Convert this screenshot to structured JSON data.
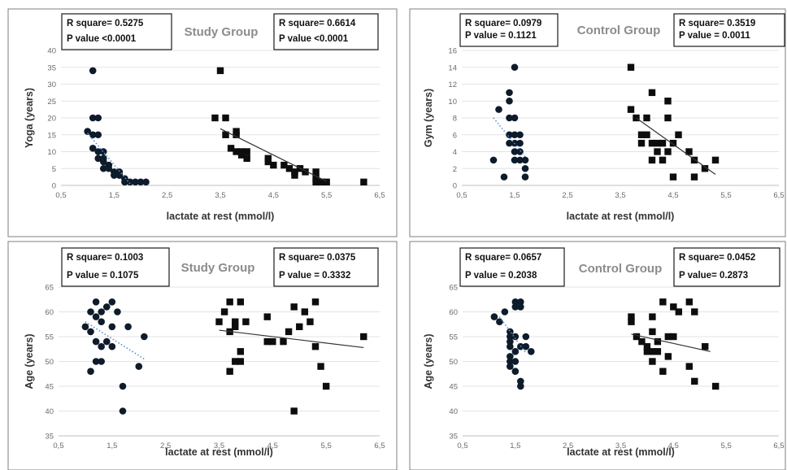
{
  "chart_data": [
    {
      "type": "scatter",
      "title": "Study Group",
      "xlabel": "lactate at rest (mmol/l)",
      "ylabel": "Yoga (years)",
      "xlim": [
        0.5,
        6.5
      ],
      "ylim": [
        0,
        40
      ],
      "x_ticks": [
        "0,5",
        "1,5",
        "2,5",
        "3,5",
        "4,5",
        "5,5",
        "6,5"
      ],
      "y_ticks": [
        "0",
        "5",
        "10",
        "15",
        "20",
        "25",
        "30",
        "35",
        "40"
      ],
      "grid": true,
      "stats": [
        {
          "r_square": "R square= 0.5275",
          "p_value": "P value   <0.0001"
        },
        {
          "r_square": "R square= 0.6614",
          "p_value": "P value     <0.0001"
        }
      ],
      "series": [
        {
          "marker": "circle",
          "color": "#0d1b2a",
          "trend": {
            "style": "dotted",
            "color": "#5b8fd0",
            "x": [
              1.0,
              1.8
            ],
            "y": [
              15.5,
              0.5
            ]
          },
          "points": [
            [
              1.0,
              16
            ],
            [
              1.1,
              34
            ],
            [
              1.1,
              20
            ],
            [
              1.2,
              20
            ],
            [
              1.1,
              15
            ],
            [
              1.2,
              15
            ],
            [
              1.1,
              11
            ],
            [
              1.2,
              10
            ],
            [
              1.3,
              10
            ],
            [
              1.2,
              8
            ],
            [
              1.3,
              8
            ],
            [
              1.3,
              7
            ],
            [
              1.4,
              6
            ],
            [
              1.4,
              5
            ],
            [
              1.3,
              5
            ],
            [
              1.5,
              4
            ],
            [
              1.5,
              3
            ],
            [
              1.6,
              4
            ],
            [
              1.6,
              3
            ],
            [
              1.7,
              2
            ],
            [
              1.7,
              1
            ],
            [
              1.8,
              1
            ],
            [
              1.9,
              1
            ],
            [
              2.0,
              1
            ],
            [
              2.1,
              1
            ]
          ]
        },
        {
          "marker": "square",
          "color": "#0d0d0d",
          "trend": {
            "style": "solid",
            "color": "#333333",
            "x": [
              3.5,
              5.5
            ],
            "y": [
              16.8,
              1.2
            ]
          },
          "points": [
            [
              3.5,
              34
            ],
            [
              3.4,
              20
            ],
            [
              3.6,
              20
            ],
            [
              3.6,
              15
            ],
            [
              3.8,
              16
            ],
            [
              3.8,
              15
            ],
            [
              3.7,
              11
            ],
            [
              3.8,
              10
            ],
            [
              3.9,
              10
            ],
            [
              4.0,
              10
            ],
            [
              3.9,
              9
            ],
            [
              4.0,
              8
            ],
            [
              4.4,
              8
            ],
            [
              4.4,
              7
            ],
            [
              4.5,
              6
            ],
            [
              4.7,
              6
            ],
            [
              4.8,
              5
            ],
            [
              4.9,
              4
            ],
            [
              5.0,
              5
            ],
            [
              4.9,
              3
            ],
            [
              5.1,
              4
            ],
            [
              5.3,
              4
            ],
            [
              5.3,
              2
            ],
            [
              5.3,
              1
            ],
            [
              5.4,
              1
            ],
            [
              5.5,
              1
            ],
            [
              6.2,
              1
            ]
          ]
        }
      ]
    },
    {
      "type": "scatter",
      "title": "Control Group",
      "xlabel": "lactate at rest (mmol/l)",
      "ylabel": "Gym (years)",
      "xlim": [
        0.5,
        6.5
      ],
      "ylim": [
        0,
        16
      ],
      "x_ticks": [
        "0,5",
        "1,5",
        "2,5",
        "3,5",
        "4,5",
        "5,5",
        "6,5"
      ],
      "y_ticks": [
        "0",
        "2",
        "4",
        "6",
        "8",
        "10",
        "12",
        "14",
        "16"
      ],
      "grid": true,
      "stats": [
        {
          "r_square": "R square= 0.0979",
          "p_value": "P value   = 0.1121"
        },
        {
          "r_square": "R square= 0.3519",
          "p_value": "P value    = 0.0011"
        }
      ],
      "series": [
        {
          "marker": "circle",
          "color": "#0d1b2a",
          "trend": {
            "style": "dotted",
            "color": "#5b8fd0",
            "x": [
              1.1,
              1.7
            ],
            "y": [
              8.0,
              3.4
            ]
          },
          "points": [
            [
              1.1,
              3
            ],
            [
              1.2,
              9
            ],
            [
              1.3,
              1
            ],
            [
              1.4,
              11
            ],
            [
              1.4,
              10
            ],
            [
              1.4,
              8
            ],
            [
              1.5,
              8
            ],
            [
              1.4,
              6
            ],
            [
              1.5,
              6
            ],
            [
              1.6,
              6
            ],
            [
              1.4,
              5
            ],
            [
              1.5,
              5
            ],
            [
              1.6,
              5
            ],
            [
              1.5,
              4
            ],
            [
              1.6,
              4
            ],
            [
              1.5,
              3
            ],
            [
              1.6,
              3
            ],
            [
              1.7,
              3
            ],
            [
              1.7,
              2
            ],
            [
              1.7,
              1
            ],
            [
              1.5,
              14
            ]
          ]
        },
        {
          "marker": "square",
          "color": "#0d0d0d",
          "trend": {
            "style": "solid",
            "color": "#333333",
            "x": [
              3.8,
              5.3
            ],
            "y": [
              8.0,
              1.3
            ]
          },
          "points": [
            [
              3.7,
              14
            ],
            [
              3.7,
              9
            ],
            [
              3.8,
              8
            ],
            [
              3.9,
              6
            ],
            [
              3.9,
              5
            ],
            [
              4.0,
              6
            ],
            [
              4.0,
              8
            ],
            [
              4.1,
              11
            ],
            [
              4.1,
              5
            ],
            [
              4.2,
              5
            ],
            [
              4.2,
              4
            ],
            [
              4.1,
              3
            ],
            [
              4.3,
              5
            ],
            [
              4.3,
              3
            ],
            [
              4.4,
              10
            ],
            [
              4.4,
              8
            ],
            [
              4.4,
              4
            ],
            [
              4.5,
              5
            ],
            [
              4.6,
              6
            ],
            [
              4.5,
              1
            ],
            [
              4.8,
              4
            ],
            [
              4.9,
              3
            ],
            [
              4.9,
              1
            ],
            [
              5.1,
              2
            ],
            [
              5.3,
              3
            ]
          ]
        }
      ]
    },
    {
      "type": "scatter",
      "title": "Study Group",
      "xlabel": "lactate at rest (mmol/l)",
      "ylabel": "Age (years)",
      "xlim": [
        0.5,
        6.5
      ],
      "ylim": [
        35,
        65
      ],
      "x_ticks": [
        "0,5",
        "1,5",
        "2,5",
        "3,5",
        "4,5",
        "5,5",
        "6,5"
      ],
      "y_ticks": [
        "35",
        "40",
        "45",
        "50",
        "55",
        "60",
        "65"
      ],
      "grid": true,
      "stats": [
        {
          "r_square": "R square= 0.1003",
          "p_value": "P value   = 0.1075"
        },
        {
          "r_square": "R square= 0.0375",
          "p_value": "P value    = 0.3332"
        }
      ],
      "series": [
        {
          "marker": "circle",
          "color": "#0d1b2a",
          "trend": {
            "style": "dotted",
            "color": "#5b8fd0",
            "x": [
              1.0,
              2.1
            ],
            "y": [
              58.0,
              50.5
            ]
          },
          "points": [
            [
              1.0,
              57
            ],
            [
              1.1,
              56
            ],
            [
              1.1,
              60
            ],
            [
              1.2,
              62
            ],
            [
              1.2,
              59
            ],
            [
              1.1,
              48
            ],
            [
              1.3,
              60
            ],
            [
              1.3,
              58
            ],
            [
              1.2,
              54
            ],
            [
              1.3,
              53
            ],
            [
              1.4,
              54
            ],
            [
              1.4,
              61
            ],
            [
              1.5,
              62
            ],
            [
              1.5,
              57
            ],
            [
              1.6,
              60
            ],
            [
              1.2,
              50
            ],
            [
              1.3,
              50
            ],
            [
              1.5,
              53
            ],
            [
              1.7,
              45
            ],
            [
              1.7,
              40
            ],
            [
              1.8,
              57
            ],
            [
              2.0,
              49
            ],
            [
              2.1,
              55
            ]
          ]
        },
        {
          "marker": "square",
          "color": "#0d0d0d",
          "trend": {
            "style": "solid",
            "color": "#333333",
            "x": [
              3.5,
              6.2
            ],
            "y": [
              56.3,
              52.8
            ]
          },
          "points": [
            [
              3.5,
              58
            ],
            [
              3.6,
              60
            ],
            [
              3.7,
              62
            ],
            [
              3.7,
              56
            ],
            [
              3.9,
              62
            ],
            [
              3.8,
              58
            ],
            [
              3.8,
              57
            ],
            [
              4.0,
              58
            ],
            [
              3.9,
              52
            ],
            [
              3.7,
              48
            ],
            [
              3.8,
              50
            ],
            [
              3.9,
              50
            ],
            [
              4.4,
              59
            ],
            [
              4.4,
              54
            ],
            [
              4.5,
              54
            ],
            [
              4.7,
              54
            ],
            [
              4.8,
              56
            ],
            [
              4.9,
              61
            ],
            [
              4.9,
              40
            ],
            [
              5.0,
              57
            ],
            [
              5.1,
              60
            ],
            [
              5.2,
              58
            ],
            [
              5.3,
              62
            ],
            [
              5.3,
              53
            ],
            [
              5.4,
              49
            ],
            [
              5.5,
              45
            ],
            [
              6.2,
              55
            ]
          ]
        }
      ]
    },
    {
      "type": "scatter",
      "title": "Control Group",
      "xlabel": "lactate at rest (mmol/l)",
      "ylabel": "Age (years)",
      "xlim": [
        0.5,
        6.5
      ],
      "ylim": [
        35,
        65
      ],
      "x_ticks": [
        "0,5",
        "1,5",
        "2,5",
        "3,5",
        "4,5",
        "5,5",
        "6,5"
      ],
      "y_ticks": [
        "35",
        "40",
        "45",
        "50",
        "55",
        "60",
        "65"
      ],
      "grid": true,
      "stats": [
        {
          "r_square": "R square= 0.0657",
          "p_value": "P value   = 0.2038"
        },
        {
          "r_square": "R square= 0.0452",
          "p_value": "P value=     0.2873"
        }
      ],
      "series": [
        {
          "marker": "circle",
          "color": "#0d1b2a",
          "trend": {
            "style": "dotted",
            "color": "#5b8fd0",
            "x": [
              1.2,
              1.7
            ],
            "y": [
              59.0,
              51.7
            ]
          },
          "points": [
            [
              1.1,
              59
            ],
            [
              1.2,
              58
            ],
            [
              1.3,
              60
            ],
            [
              1.4,
              56
            ],
            [
              1.4,
              55
            ],
            [
              1.4,
              54
            ],
            [
              1.4,
              53
            ],
            [
              1.4,
              51
            ],
            [
              1.4,
              50
            ],
            [
              1.4,
              49
            ],
            [
              1.5,
              62
            ],
            [
              1.5,
              61
            ],
            [
              1.5,
              55
            ],
            [
              1.5,
              52
            ],
            [
              1.5,
              50
            ],
            [
              1.5,
              48
            ],
            [
              1.6,
              62
            ],
            [
              1.6,
              61
            ],
            [
              1.6,
              46
            ],
            [
              1.6,
              45
            ],
            [
              1.7,
              55
            ],
            [
              1.7,
              53
            ],
            [
              1.8,
              52
            ],
            [
              1.6,
              53
            ]
          ]
        },
        {
          "marker": "square",
          "color": "#0d0d0d",
          "trend": {
            "style": "solid",
            "color": "#333333",
            "x": [
              3.7,
              5.2
            ],
            "y": [
              55.5,
              52.0
            ]
          },
          "points": [
            [
              3.7,
              59
            ],
            [
              3.7,
              58
            ],
            [
              3.8,
              55
            ],
            [
              3.9,
              54
            ],
            [
              4.0,
              53
            ],
            [
              4.0,
              52
            ],
            [
              4.1,
              59
            ],
            [
              4.1,
              56
            ],
            [
              4.1,
              52
            ],
            [
              4.1,
              50
            ],
            [
              4.2,
              54
            ],
            [
              4.2,
              52
            ],
            [
              4.3,
              48
            ],
            [
              4.3,
              62
            ],
            [
              4.4,
              51
            ],
            [
              4.4,
              55
            ],
            [
              4.5,
              55
            ],
            [
              4.5,
              61
            ],
            [
              4.6,
              60
            ],
            [
              4.8,
              62
            ],
            [
              4.8,
              49
            ],
            [
              4.9,
              60
            ],
            [
              4.9,
              46
            ],
            [
              5.1,
              53
            ],
            [
              5.3,
              45
            ]
          ]
        }
      ]
    }
  ]
}
